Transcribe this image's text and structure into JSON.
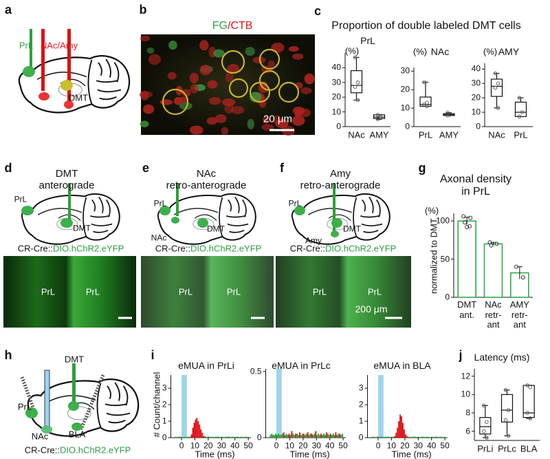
{
  "panel_letters": [
    "a",
    "b",
    "c",
    "d",
    "e",
    "f",
    "g",
    "h",
    "i",
    "j"
  ],
  "a": {
    "labels": [
      "PrL",
      "NAc/Amy",
      "DMT"
    ]
  },
  "b": {
    "title": [
      "FG",
      "/CTB"
    ],
    "scale_bar": "20 μm"
  },
  "c": {
    "title": "Proportion of double labeled DMT cells"
  },
  "d": {
    "title": "DMT\nanterograde",
    "labels": [
      "PrL",
      "DMT"
    ],
    "genotype": [
      "CR-Cre::",
      "DIO.hChR2.eYFP"
    ],
    "image_labels": [
      "PrL",
      "PrL"
    ]
  },
  "e": {
    "title": "NAc\nretro-anterograde",
    "labels": [
      "PrL",
      "NAc",
      "DMT"
    ],
    "genotype": [
      "CR-Cre::",
      "DIO.hChR2.eYFP"
    ],
    "image_labels": [
      "PrL",
      "PrL"
    ]
  },
  "f": {
    "title": "Amy\nretro-anterograde",
    "labels": [
      "PrL",
      "Amy",
      "DMT"
    ],
    "genotype": [
      "CR-Cre::",
      "DIO.hChR2.eYFP"
    ],
    "image_labels": [
      "PrL",
      "PrL"
    ],
    "scale_bar": "200 μm"
  },
  "h": {
    "labels": [
      "DMT",
      "PrL",
      "NAc",
      "BLA"
    ],
    "genotype": [
      "CR-Cre::",
      "DIO.hChR2.eYFP"
    ]
  },
  "chart_data": [
    {
      "type": "box",
      "title": "PrL",
      "y_unit": "(%)",
      "categories": [
        "NAc",
        "AMY"
      ],
      "color": "#111111",
      "boxes": [
        {
          "min": 18,
          "q1": 23,
          "median": 28,
          "q3": 38,
          "max": 47,
          "points": [
            47,
            30,
            27,
            18
          ]
        },
        {
          "min": 5,
          "q1": 5.5,
          "median": 6.5,
          "q3": 8,
          "max": 8,
          "points": [
            5,
            6.5,
            8
          ]
        }
      ],
      "ylim": [
        0,
        50
      ],
      "yticks": [
        0,
        10,
        20,
        30,
        40
      ]
    },
    {
      "type": "box",
      "title": "NAc",
      "y_unit": "(%)",
      "categories": [
        "PrL",
        "AMY"
      ],
      "color": "#111111",
      "boxes": [
        {
          "min": 11,
          "q1": 11,
          "median": 12,
          "q3": 16,
          "max": 24,
          "points": [
            24,
            13,
            12,
            11
          ]
        },
        {
          "min": 6,
          "q1": 6,
          "median": 6.5,
          "q3": 7,
          "max": 7.5,
          "points": [
            7.5,
            6.5,
            6
          ]
        }
      ],
      "ylim": [
        0,
        32
      ],
      "yticks": [
        0,
        10,
        20,
        30
      ]
    },
    {
      "type": "box",
      "title": "AMY",
      "y_unit": "(%)",
      "categories": [
        "NAc",
        "PrL"
      ],
      "color": "#111111",
      "boxes": [
        {
          "min": 13,
          "q1": 21,
          "median": 28,
          "q3": 33,
          "max": 37,
          "points": [
            37,
            30,
            27,
            13
          ]
        },
        {
          "min": 7,
          "q1": 7,
          "median": 10,
          "q3": 17,
          "max": 20,
          "points": [
            20,
            10,
            7
          ]
        }
      ],
      "ylim": [
        0,
        44
      ],
      "yticks": [
        0,
        10,
        20,
        30,
        40
      ]
    },
    {
      "type": "bar",
      "title": "Axonal density\nin PrL",
      "y_unit": "(%)",
      "ylabel": "normalized to DMT",
      "categories": [
        "DMT\nant.",
        "NAc\nretr-\nant",
        "AMY\nretr-\nant"
      ],
      "values": [
        100,
        70,
        32
      ],
      "errors": [
        5,
        2,
        8
      ],
      "points": [
        [
          106,
          104,
          98,
          93,
          92
        ],
        [
          72,
          70,
          68
        ],
        [
          40,
          26
        ]
      ],
      "color": "#2eaa4a",
      "ylim": [
        0,
        110
      ],
      "yticks": [
        0,
        50,
        100
      ]
    },
    {
      "type": "histogram",
      "title": "eMUA in PrLi",
      "ylabel": "# Count/channel",
      "xlabel": "Time (ms)",
      "bins": [
        -5,
        -4,
        -3,
        -2,
        -1,
        0,
        1,
        2,
        3,
        4,
        5,
        6,
        7,
        8,
        9,
        10,
        11,
        12,
        13,
        14,
        15,
        16,
        17,
        18,
        19,
        20,
        21,
        22,
        23,
        24,
        25,
        26,
        27,
        28,
        29,
        30,
        31,
        32,
        33,
        34,
        35,
        36,
        37,
        38,
        39,
        40,
        41,
        42,
        43,
        44,
        45,
        46,
        47,
        48,
        49,
        50
      ],
      "series": [
        {
          "color": "#2e9e3e",
          "values": [
            0.06,
            0.04,
            0.05,
            0.07,
            0.05,
            0.03,
            0.04,
            0.05,
            0.04,
            0.06,
            0.05,
            0.07,
            null,
            null,
            null,
            null,
            null,
            null,
            null,
            null,
            null,
            null,
            0.08,
            0.06,
            0.05,
            0.07,
            0.04,
            0.06,
            0.05,
            0.04,
            0.06,
            0.05,
            0.07,
            0.04,
            0.05,
            0.06,
            0.05,
            0.04,
            0.06,
            0.05,
            0.07,
            0.04,
            0.05,
            0.06,
            0.04,
            0.05,
            0.06,
            0.05,
            0.04,
            0.06,
            0.05,
            0.04,
            0.05,
            0.06,
            0.04
          ]
        },
        {
          "color": "#e0151b",
          "values": [
            null,
            null,
            null,
            null,
            null,
            null,
            null,
            null,
            null,
            null,
            null,
            null,
            0.2,
            0.6,
            0.9,
            1.1,
            1.2,
            1.0,
            0.8,
            0.5,
            0.3,
            0.1,
            null,
            null,
            null,
            null,
            null,
            null,
            null,
            null,
            null,
            null,
            null,
            null,
            null,
            null,
            null,
            null,
            null,
            null,
            null,
            null,
            null,
            null,
            null,
            null,
            null,
            null,
            null,
            null,
            null,
            null,
            null,
            null,
            null
          ]
        }
      ],
      "stimulus": [
        0,
        4
      ],
      "stimulus_color": "#9dd4ee",
      "xlim": [
        -8,
        52
      ],
      "xticks": [
        0,
        10,
        20,
        30,
        40,
        50
      ],
      "ylim": [
        0,
        3.8
      ],
      "yticks": [
        0,
        1,
        2,
        3
      ]
    },
    {
      "type": "histogram",
      "title": "eMUA in PrLc",
      "xlabel": "Time (ms)",
      "bins": [
        -5,
        -4,
        -3,
        -2,
        -1,
        0,
        1,
        2,
        3,
        4,
        5,
        6,
        7,
        8,
        9,
        10,
        11,
        12,
        13,
        14,
        15,
        16,
        17,
        18,
        19,
        20,
        21,
        22,
        23,
        24,
        25,
        26,
        27,
        28,
        29,
        30,
        31,
        32,
        33,
        34,
        35,
        36,
        37,
        38,
        39,
        40,
        41,
        42,
        43,
        44,
        45,
        46,
        47,
        48,
        49,
        50
      ],
      "series": [
        {
          "color": "#2e9e3e",
          "values": [
            0.02,
            0.03,
            0.02,
            0.02,
            0.03,
            0.02,
            0.03,
            0.02,
            0.02,
            0.03,
            null,
            0.02,
            0.03,
            0.02,
            null,
            0.02,
            null,
            0.03,
            0.02,
            null,
            0.03,
            0.02,
            null,
            0.02,
            0.03,
            null,
            0.02,
            0.03,
            null,
            0.02,
            0.03,
            null,
            0.02,
            0.03,
            null,
            0.02,
            0.03,
            0.02,
            null,
            0.02,
            0.03,
            0.02,
            null,
            0.03,
            0.02,
            null,
            0.02,
            0.03,
            0.02,
            null,
            0.02,
            0.03,
            null,
            0.02,
            0.03
          ]
        },
        {
          "color": "#e0151b",
          "values": [
            null,
            null,
            null,
            null,
            null,
            null,
            null,
            null,
            null,
            null,
            0.04,
            null,
            null,
            null,
            0.03,
            null,
            0.05,
            null,
            null,
            0.03,
            null,
            null,
            0.04,
            null,
            null,
            0.03,
            null,
            null,
            0.04,
            null,
            null,
            0.03,
            null,
            null,
            0.05,
            null,
            null,
            null,
            0.03,
            null,
            null,
            null,
            0.04,
            null,
            null,
            0.03,
            null,
            null,
            null,
            0.04,
            null,
            null,
            0.03,
            null,
            null
          ]
        }
      ],
      "stimulus": [
        0,
        4
      ],
      "stimulus_color": "#9dd4ee",
      "xlim": [
        -8,
        52
      ],
      "xticks": [
        0,
        10,
        20,
        30,
        40,
        50
      ],
      "ylim": [
        0,
        0.52
      ],
      "yticks": [
        0,
        0.5
      ]
    },
    {
      "type": "histogram",
      "title": "eMUA in BLA",
      "xlabel": "Time (ms)",
      "bins": [
        -5,
        -4,
        -3,
        -2,
        -1,
        0,
        1,
        2,
        3,
        4,
        5,
        6,
        7,
        8,
        9,
        10,
        11,
        12,
        13,
        14,
        15,
        16,
        17,
        18,
        19,
        20,
        21,
        22,
        23,
        24,
        25,
        26,
        27,
        28,
        29,
        30,
        31,
        32,
        33,
        34,
        35,
        36,
        37,
        38,
        39,
        40,
        41,
        42,
        43,
        44,
        45,
        46,
        47,
        48,
        49,
        50
      ],
      "series": [
        {
          "color": "#2e9e3e",
          "values": [
            0.05,
            0.06,
            0.04,
            0.05,
            0.07,
            0.04,
            0.05,
            0.06,
            0.05,
            0.04,
            0.06,
            0.05,
            0.07,
            0.04,
            0.05,
            0.06,
            0.05,
            null,
            null,
            null,
            null,
            null,
            null,
            null,
            null,
            null,
            null,
            0.06,
            0.05,
            0.04,
            0.06,
            0.05,
            0.07,
            0.04,
            0.05,
            0.06,
            0.04,
            0.05,
            0.06,
            0.05,
            0.04,
            0.06,
            0.05,
            0.04,
            0.05,
            0.06,
            0.04,
            0.05,
            0.07,
            0.05,
            0.04,
            0.06,
            0.05,
            0.04,
            0.05
          ]
        },
        {
          "color": "#e0151b",
          "values": [
            null,
            null,
            null,
            null,
            null,
            null,
            null,
            null,
            null,
            null,
            null,
            null,
            null,
            null,
            null,
            null,
            null,
            0.1,
            0.3,
            0.6,
            1.0,
            1.4,
            1.3,
            0.9,
            0.5,
            0.2,
            0.1,
            null,
            null,
            null,
            null,
            null,
            null,
            null,
            null,
            null,
            null,
            null,
            null,
            null,
            null,
            null,
            null,
            null,
            null,
            null,
            null,
            null,
            null,
            null,
            null,
            null,
            null,
            null,
            null
          ]
        }
      ],
      "stimulus": [
        0,
        4
      ],
      "stimulus_color": "#9dd4ee",
      "xlim": [
        -8,
        52
      ],
      "xticks": [
        0,
        10,
        20,
        30,
        40,
        50
      ],
      "ylim": [
        0,
        3.8
      ],
      "yticks": [
        0,
        1,
        2,
        3
      ]
    },
    {
      "type": "box",
      "title": "Latency (ms)",
      "categories": [
        "PrLi",
        "PrLc",
        "BLA"
      ],
      "color": "#111111",
      "boxes": [
        {
          "min": 5.3,
          "q1": 5.7,
          "median": 6.5,
          "q3": 7.5,
          "max": 8.8,
          "points": [
            8.8,
            7,
            6,
            5.3
          ]
        },
        {
          "min": 5.5,
          "q1": 7,
          "median": 8.3,
          "q3": 10,
          "max": 10.5,
          "points": [
            10.5,
            8.3,
            7.2,
            5.5
          ]
        },
        {
          "min": 7.4,
          "q1": 7.5,
          "median": 8,
          "q3": 11,
          "max": 11,
          "points": [
            11,
            10.8,
            8,
            7.4
          ]
        }
      ],
      "ylim": [
        5,
        12.8
      ],
      "yticks": [
        6,
        8,
        10,
        12
      ]
    }
  ]
}
